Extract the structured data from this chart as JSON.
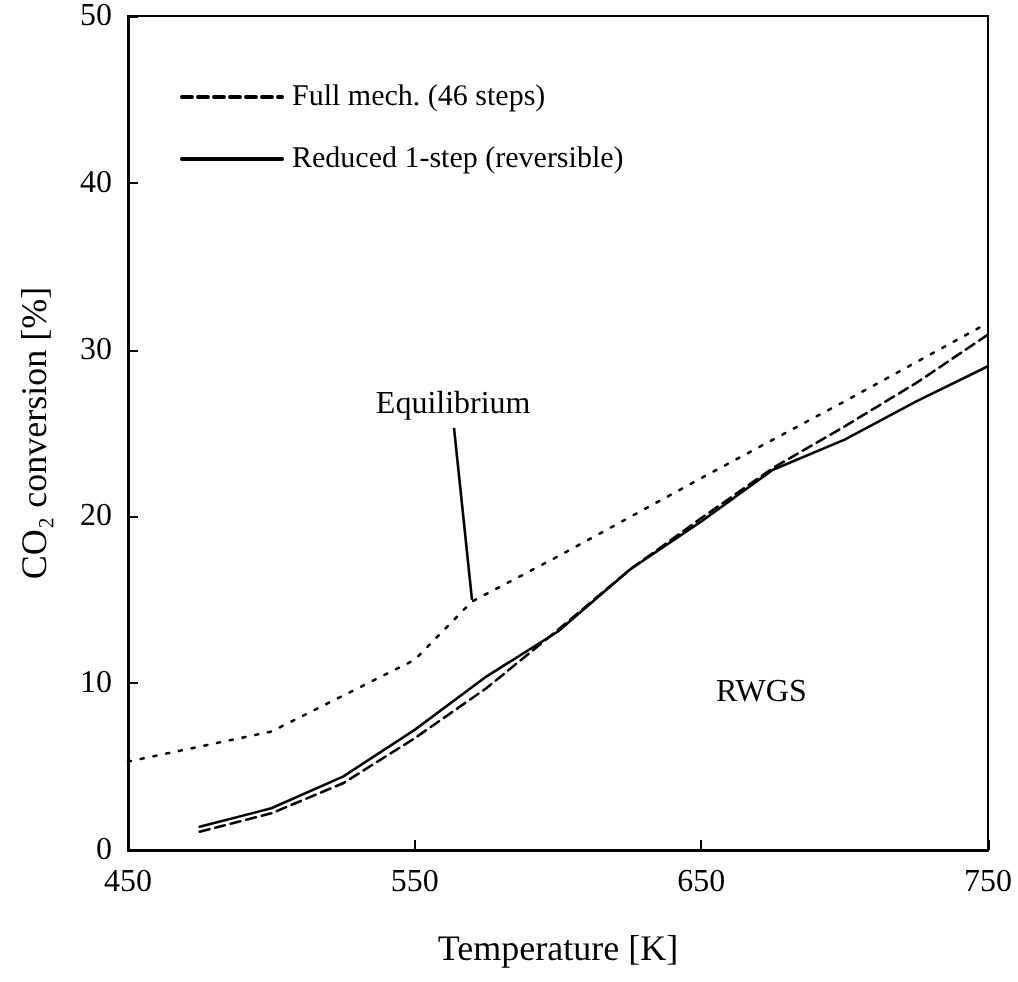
{
  "chart_data": {
    "type": "line",
    "xlabel": "Temperature [K]",
    "ylabel": "CO₂ conversion [%]",
    "xlim": [
      450,
      750
    ],
    "xticks": [
      450,
      550,
      650,
      750
    ],
    "ylim": [
      0,
      50
    ],
    "yticks": [
      0,
      10,
      20,
      30,
      40,
      50
    ],
    "grid": false,
    "legend": "top left",
    "marker": "none",
    "series": [
      {
        "name": "Full mech. (46 steps)",
        "color": "#000000",
        "line_style": "dashed",
        "x": [
          475,
          500,
          525,
          550,
          575,
          600,
          625,
          650,
          675,
          700,
          725,
          750
        ],
        "values": [
          1.1,
          2.2,
          4.0,
          6.7,
          9.7,
          13.2,
          16.8,
          19.9,
          22.9,
          25.4,
          28.0,
          30.9
        ]
      },
      {
        "name": "Reduced 1-step (reversible)",
        "color": "#000000",
        "line_style": "solid",
        "x": [
          475,
          500,
          525,
          550,
          575,
          600,
          625,
          650,
          675,
          700,
          725,
          750
        ],
        "values": [
          1.4,
          2.5,
          4.4,
          7.2,
          10.4,
          13.1,
          16.8,
          19.7,
          22.8,
          24.6,
          26.9,
          29.0
        ]
      },
      {
        "color": "#000000",
        "line_style": "dotted",
        "x": [
          450,
          500,
          550,
          570,
          600,
          650,
          700,
          750
        ],
        "values": [
          5.3,
          7.1,
          11.4,
          14.9,
          17.6,
          22.3,
          26.9,
          31.6
        ]
      }
    ],
    "annotations": [
      {
        "text": "Equilibrium",
        "x": 570,
        "y": 15
      },
      "RWGS"
    ]
  }
}
